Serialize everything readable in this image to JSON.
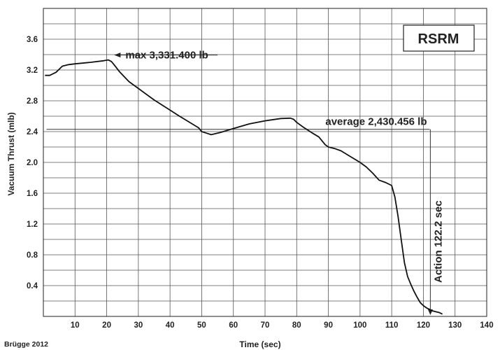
{
  "chart_data": {
    "type": "line",
    "xlabel": "Time (sec)",
    "ylabel": "Vacuum Thrust (mlb)",
    "xlim": [
      0,
      140
    ],
    "ylim": [
      0,
      4.0
    ],
    "grid": true,
    "x_ticks": [
      10,
      20,
      30,
      40,
      50,
      60,
      70,
      80,
      90,
      100,
      110,
      120,
      130,
      140
    ],
    "y_ticks": [
      0.4,
      0.8,
      1.2,
      1.6,
      2.0,
      2.4,
      2.8,
      3.2,
      3.6
    ],
    "series": [
      {
        "x": [
          0.5,
          2,
          4,
          6,
          8,
          10,
          15,
          19,
          20.5,
          21.5,
          22.5,
          24,
          27,
          30,
          35,
          40,
          43,
          45,
          47,
          49,
          50,
          51.5,
          53,
          56,
          60,
          65,
          70,
          75,
          78,
          79,
          80,
          82,
          85,
          87,
          88,
          89,
          90,
          92,
          94,
          96,
          98,
          100,
          102,
          104,
          106,
          108,
          110,
          111,
          112,
          113,
          114,
          115,
          116,
          117,
          118,
          119,
          120,
          121,
          122,
          123,
          124,
          125,
          126
        ],
        "y": [
          3.13,
          3.13,
          3.17,
          3.25,
          3.27,
          3.28,
          3.3,
          3.32,
          3.331,
          3.31,
          3.26,
          3.18,
          3.05,
          2.96,
          2.81,
          2.68,
          2.6,
          2.55,
          2.5,
          2.45,
          2.4,
          2.38,
          2.36,
          2.39,
          2.44,
          2.5,
          2.54,
          2.57,
          2.575,
          2.56,
          2.52,
          2.46,
          2.38,
          2.33,
          2.28,
          2.23,
          2.2,
          2.18,
          2.15,
          2.1,
          2.05,
          2.0,
          1.94,
          1.86,
          1.77,
          1.74,
          1.7,
          1.55,
          1.3,
          1.0,
          0.7,
          0.52,
          0.42,
          0.33,
          0.25,
          0.18,
          0.14,
          0.11,
          0.09,
          0.07,
          0.06,
          0.05,
          0.03
        ]
      }
    ],
    "max_line": {
      "y": 3.331,
      "x_start": 21.5,
      "x_end": 55
    },
    "average_line": {
      "y": 2.43,
      "x_start": 1,
      "x_end": 122
    },
    "action_marker": {
      "x": 122.2,
      "y_top": 2.43,
      "y_bottom": 0.0
    }
  },
  "annotations": {
    "max_label": "max 3,331.400 lb",
    "average_label": "average 2,430.456 lb",
    "action_label": "Action 122.2 sec"
  },
  "badge": {
    "label": "RSRM"
  },
  "credit": "Brügge 2012"
}
